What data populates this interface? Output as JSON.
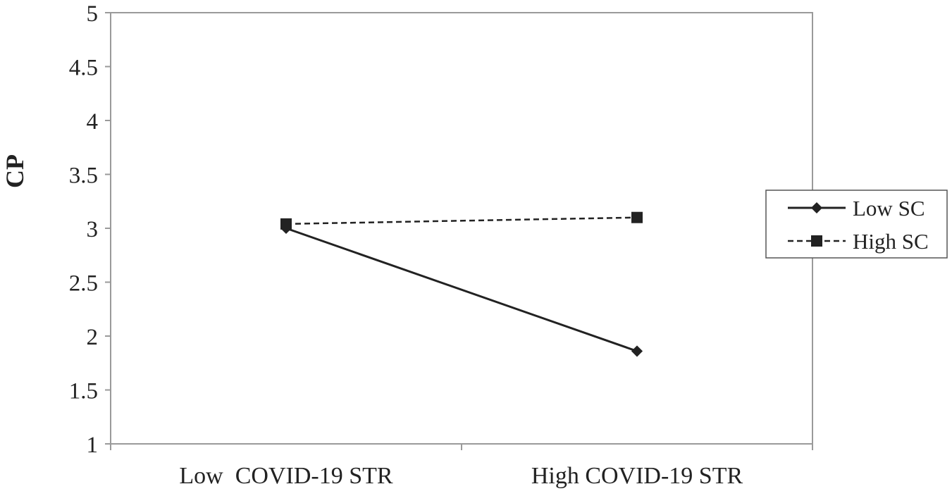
{
  "chart_data": {
    "type": "line",
    "title": "",
    "xlabel": "",
    "ylabel": "CP",
    "categories": [
      "Low  COVID-19 STR",
      "High COVID-19 STR"
    ],
    "ylim": [
      1,
      5
    ],
    "yticks": [
      "1",
      "1.5",
      "2",
      "2.5",
      "3",
      "3.5",
      "4",
      "4.5",
      "5"
    ],
    "grid": false,
    "legend_position": "right",
    "series": [
      {
        "name": "Low SC",
        "values": [
          3.0,
          1.86
        ],
        "marker": "diamond",
        "line_style": "solid",
        "color": "#222222"
      },
      {
        "name": "High SC",
        "values": [
          3.04,
          3.1
        ],
        "marker": "square",
        "line_style": "dashed",
        "color": "#222222"
      }
    ]
  }
}
